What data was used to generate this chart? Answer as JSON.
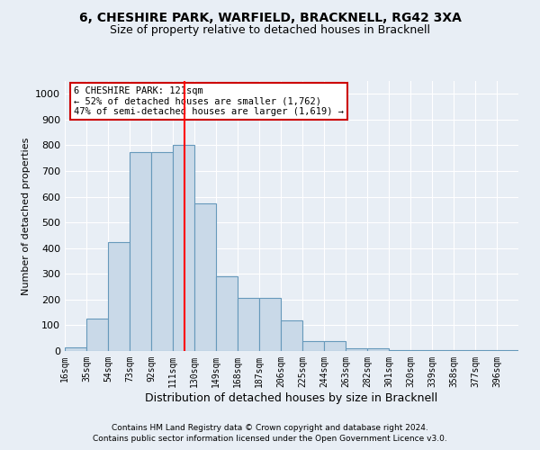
{
  "title": "6, CHESHIRE PARK, WARFIELD, BRACKNELL, RG42 3XA",
  "subtitle": "Size of property relative to detached houses in Bracknell",
  "xlabel": "Distribution of detached houses by size in Bracknell",
  "ylabel": "Number of detached properties",
  "footer1": "Contains HM Land Registry data © Crown copyright and database right 2024.",
  "footer2": "Contains public sector information licensed under the Open Government Licence v3.0.",
  "annotation_title": "6 CHESHIRE PARK: 121sqm",
  "annotation_line1": "← 52% of detached houses are smaller (1,762)",
  "annotation_line2": "47% of semi-detached houses are larger (1,619) →",
  "bar_color": "#c9d9e8",
  "bar_edge_color": "#6699bb",
  "vline_color": "red",
  "vline_x_index": 5,
  "categories": [
    "16sqm",
    "35sqm",
    "54sqm",
    "73sqm",
    "92sqm",
    "111sqm",
    "130sqm",
    "149sqm",
    "168sqm",
    "187sqm",
    "206sqm",
    "225sqm",
    "244sqm",
    "263sqm",
    "282sqm",
    "301sqm",
    "320sqm",
    "339sqm",
    "358sqm",
    "377sqm",
    "396sqm"
  ],
  "values": [
    15,
    125,
    425,
    775,
    775,
    800,
    575,
    290,
    205,
    205,
    120,
    40,
    40,
    12,
    10,
    5,
    5,
    5,
    5,
    5,
    5
  ],
  "ylim": [
    0,
    1050
  ],
  "yticks": [
    0,
    100,
    200,
    300,
    400,
    500,
    600,
    700,
    800,
    900,
    1000
  ],
  "background_color": "#e8eef5",
  "grid_color": "#ffffff",
  "title_fontsize": 10,
  "subtitle_fontsize": 9,
  "annotation_box_facecolor": "#ffffff",
  "annotation_box_edgecolor": "#cc0000",
  "annotation_fontsize": 7.5
}
